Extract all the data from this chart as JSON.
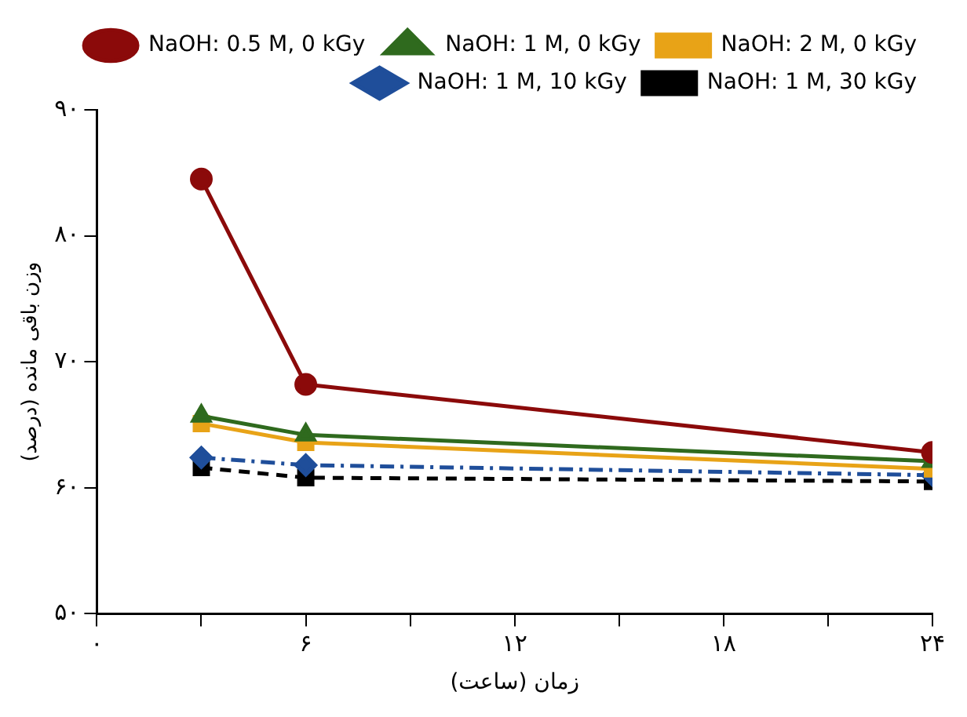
{
  "chart_data": {
    "type": "line",
    "xlabel": "زمان (ساعت)",
    "ylabel": "وزن باقی مانده (درصد)",
    "xlim": [
      0,
      24
    ],
    "xticks": [
      {
        "value": 0,
        "label": "۰"
      },
      {
        "value": 3,
        "label": null
      },
      {
        "value": 6,
        "label": "۶"
      },
      {
        "value": 9,
        "label": null
      },
      {
        "value": 12,
        "label": "۱۲"
      },
      {
        "value": 15,
        "label": null
      },
      {
        "value": 18,
        "label": "۱۸"
      },
      {
        "value": 21,
        "label": null
      },
      {
        "value": 24,
        "label": "۲۴"
      }
    ],
    "ylim": [
      50,
      90
    ],
    "yticks": [
      {
        "value": 50,
        "label": "۵۰"
      },
      {
        "value": 60,
        "label": "۶۰"
      },
      {
        "value": 70,
        "label": "۷۰"
      },
      {
        "value": 80,
        "label": "۸۰"
      },
      {
        "value": 90,
        "label": "۹۰"
      }
    ],
    "x": [
      3,
      6,
      24
    ],
    "grid": false,
    "legend": "top right",
    "series": [
      {
        "name": "NaOH: 0.5 M, 0 kGy",
        "color": "#8b0a0a",
        "marker": "circle",
        "line_style": "solid",
        "values": [
          84.5,
          68.2,
          62.8
        ]
      },
      {
        "name": "NaOH: 1 M, 0 kGy",
        "color": "#2f6a1e",
        "marker": "triangle",
        "line_style": "solid",
        "values": [
          65.7,
          64.2,
          62.1
        ]
      },
      {
        "name": "NaOH: 2 M, 0 kGy",
        "color": "#e8a317",
        "marker": "square",
        "line_style": "solid",
        "values": [
          65.1,
          63.6,
          61.5
        ]
      },
      {
        "name": "NaOH: 1 M, 10 kGy",
        "color": "#1f4e9a",
        "marker": "diamond",
        "line_style": "dashdot",
        "values": [
          62.4,
          61.8,
          61.0
        ]
      },
      {
        "name": "NaOH: 1 M, 30 kGy",
        "color": "#000000",
        "marker": "square",
        "line_style": "dashed",
        "values": [
          61.6,
          60.8,
          60.5
        ]
      }
    ]
  }
}
